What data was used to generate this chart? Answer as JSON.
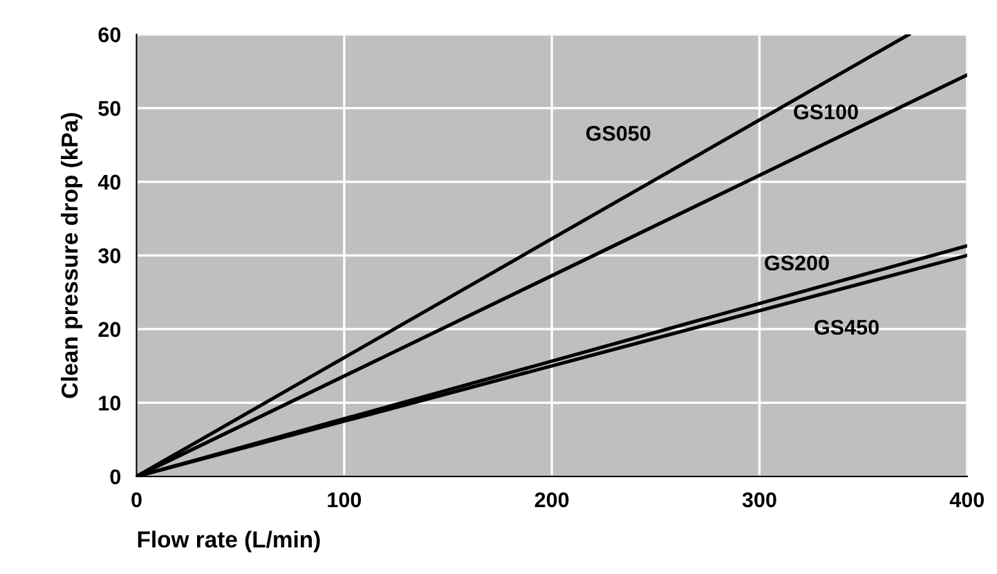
{
  "chart_data": {
    "type": "line",
    "xlabel": "Flow rate (L/min)",
    "ylabel": "Clean pressure drop (kPa)",
    "series": [
      {
        "name": "GS050",
        "color": "#000000",
        "x": [
          0,
          372
        ],
        "values": [
          0,
          60
        ]
      },
      {
        "name": "GS100",
        "color": "#000000",
        "x": [
          0,
          400
        ],
        "values": [
          0,
          54.5
        ]
      },
      {
        "name": "GS200",
        "color": "#000000",
        "x": [
          0,
          400
        ],
        "values": [
          0,
          31.3
        ]
      },
      {
        "name": "GS450",
        "color": "#000000",
        "x": [
          0,
          400
        ],
        "values": [
          0,
          30
        ]
      }
    ],
    "xlim": [
      0,
      400
    ],
    "ylim": [
      0,
      60
    ],
    "xticks": [
      0,
      100,
      200,
      300,
      400
    ],
    "yticks": [
      0,
      10,
      20,
      30,
      40,
      50,
      60
    ],
    "grid": true,
    "marker": "none",
    "line_style": "solid",
    "legend": false
  }
}
